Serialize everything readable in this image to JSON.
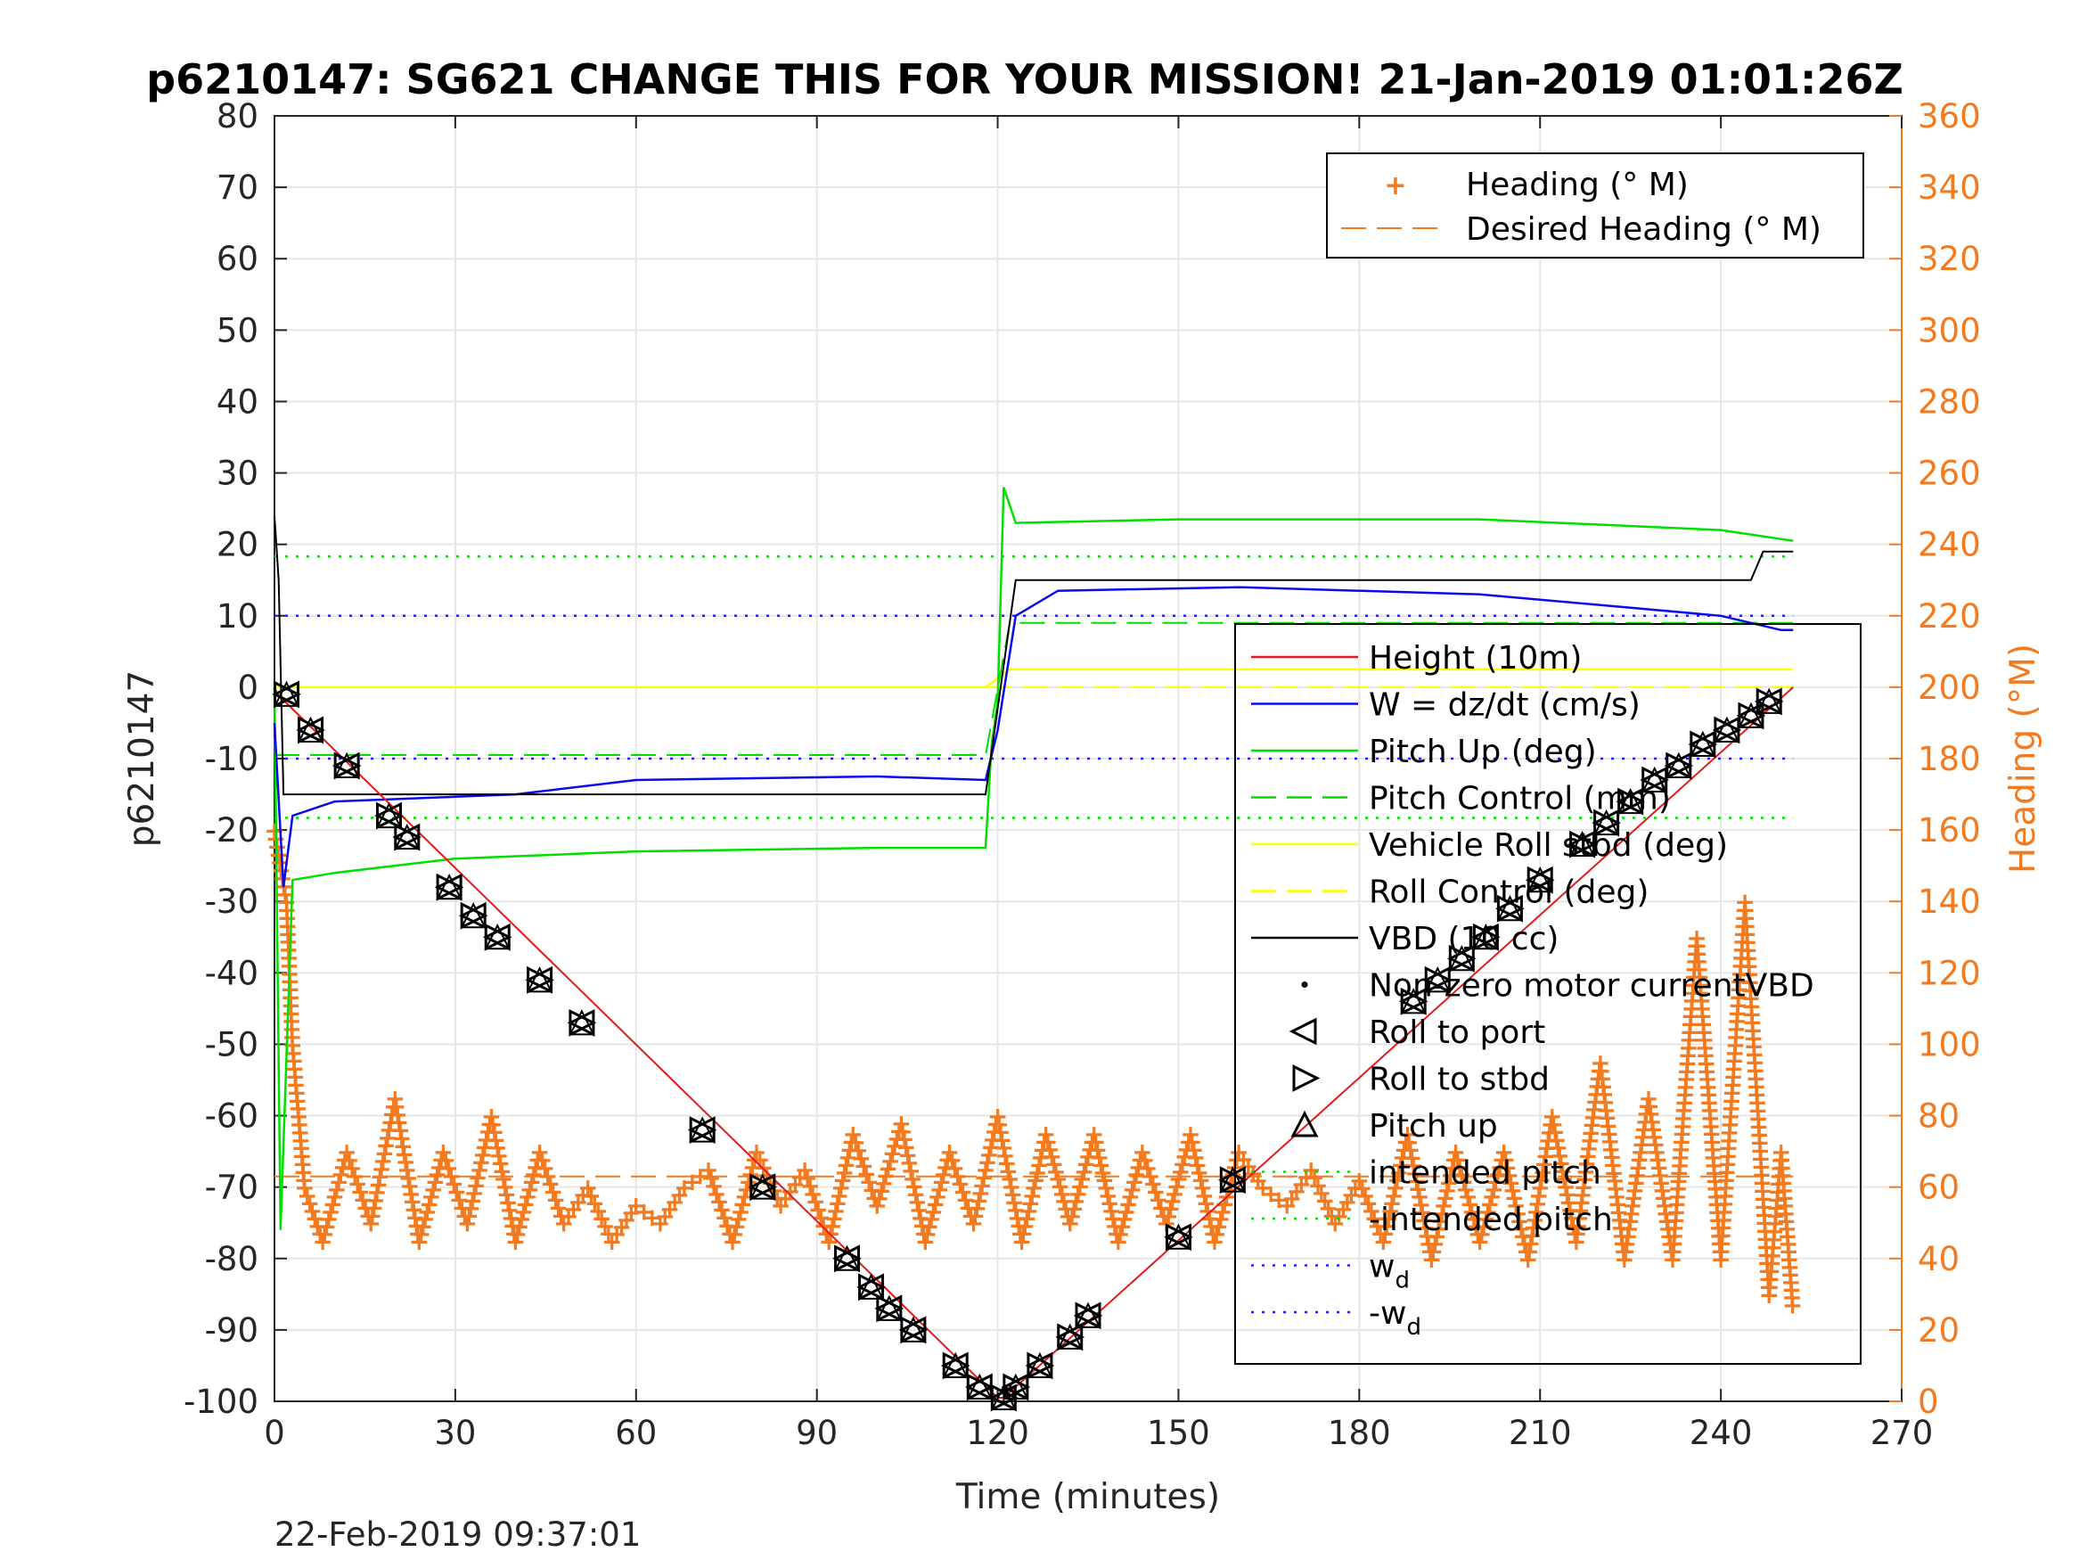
{
  "chart_data": {
    "type": "line",
    "title": "p6210147: SG621 CHANGE THIS FOR YOUR MISSION! 21-Jan-2019 01:01:26Z",
    "xlabel": "Time (minutes)",
    "ylabel": "p6210147",
    "ylabel_right": "Heading (°M)",
    "xlim": [
      0,
      270
    ],
    "ylim": [
      -100,
      80
    ],
    "ylim_right": [
      0,
      360
    ],
    "xticks": [
      "0",
      "30",
      "60",
      "90",
      "120",
      "150",
      "180",
      "210",
      "240",
      "270"
    ],
    "yticks": [
      "80",
      "70",
      "60",
      "50",
      "40",
      "30",
      "20",
      "10",
      "0",
      "-10",
      "-20",
      "-30",
      "-40",
      "-50",
      "-60",
      "-70",
      "-80",
      "-90",
      "-100"
    ],
    "yticks_right": [
      "360",
      "340",
      "320",
      "300",
      "280",
      "260",
      "240",
      "220",
      "200",
      "180",
      "160",
      "140",
      "120",
      "100",
      "80",
      "60",
      "40",
      "20",
      "0"
    ],
    "grid": true,
    "timestamp": "22-Feb-2019 09:37:01",
    "legend_right_axis": [
      "Heading (° M)",
      "Desired Heading (° M)"
    ],
    "legend_left_axis": [
      "Height (10m)",
      "W = dz/dt (cm/s)",
      "Pitch Up (deg)",
      "Pitch Control (mm)",
      "Vehicle Roll stbd (deg)",
      "Roll Control (deg)",
      "VBD (10 cc)",
      "Non-zero motor currentVBD",
      "Roll to port",
      "Roll to stbd",
      "Pitch up",
      "intended pitch",
      "-intended pitch",
      "w_d",
      "-w_d"
    ],
    "colors": {
      "height": "#e31a1c",
      "w": "#0a0af0",
      "pitch": "#00e000",
      "roll": "#ffff00",
      "vbd": "#000000",
      "heading": "#f47a1f",
      "wd": "#2020ff"
    },
    "series": [
      {
        "name": "Height (10m)",
        "x": [
          0,
          0.5,
          120,
          121,
          252
        ],
        "y": [
          0,
          -1,
          -99.5,
          -99.5,
          0
        ]
      },
      {
        "name": "W = dz/dt (cm/s)",
        "x": [
          0,
          1.5,
          3,
          10,
          40,
          60,
          100,
          118,
          120,
          123,
          130,
          160,
          200,
          240,
          250,
          252
        ],
        "y": [
          -5,
          -28,
          -18,
          -16,
          -15,
          -13,
          -12.5,
          -13,
          -6,
          10,
          13.5,
          14,
          13,
          10,
          8,
          8
        ]
      },
      {
        "name": "Pitch Up (deg)",
        "x": [
          0,
          1,
          3,
          10,
          30,
          60,
          100,
          118,
          119,
          120,
          121,
          123,
          150,
          200,
          240,
          252
        ],
        "y": [
          0,
          -76,
          -27,
          -26,
          -24,
          -23,
          -22.5,
          -22.5,
          -8,
          -2,
          28,
          23,
          23.5,
          23.5,
          22,
          20.5
        ]
      },
      {
        "name": "Pitch Control (mm)",
        "x": [
          0,
          118,
          122,
          252
        ],
        "y": [
          -9.5,
          -9.5,
          9,
          9
        ]
      },
      {
        "name": "Vehicle Roll stbd (deg)",
        "x": [
          0,
          118,
          122,
          252
        ],
        "y": [
          0,
          0,
          2.5,
          2.5
        ]
      },
      {
        "name": "Roll Control (deg)",
        "x": [
          0,
          252
        ],
        "y": [
          0,
          0
        ]
      },
      {
        "name": "VBD (10 cc)",
        "x": [
          0,
          0.7,
          1.5,
          118,
          123,
          245,
          246,
          247,
          252
        ],
        "y": [
          24,
          15,
          -15,
          -15,
          15,
          15,
          17,
          19,
          19
        ]
      },
      {
        "name": "intended pitch",
        "x": [
          0,
          252
        ],
        "y": [
          18.3,
          18.3
        ]
      },
      {
        "name": "-intended pitch",
        "x": [
          0,
          252
        ],
        "y": [
          -18.3,
          -18.3
        ]
      },
      {
        "name": "w_d",
        "x": [
          0,
          252
        ],
        "y": [
          10,
          10
        ]
      },
      {
        "name": "-w_d",
        "x": [
          0,
          252
        ],
        "y": [
          -10,
          -10
        ]
      },
      {
        "name": "Heading (° M)",
        "axis": "right",
        "x": [
          0,
          2,
          3,
          5,
          8,
          12,
          16,
          20,
          24,
          28,
          32,
          36,
          40,
          44,
          48,
          52,
          56,
          60,
          64,
          68,
          72,
          76,
          80,
          84,
          88,
          92,
          96,
          100,
          104,
          108,
          112,
          116,
          120,
          124,
          128,
          132,
          136,
          140,
          144,
          148,
          152,
          156,
          160,
          164,
          168,
          172,
          176,
          180,
          184,
          188,
          192,
          196,
          200,
          204,
          208,
          212,
          216,
          220,
          224,
          228,
          232,
          236,
          240,
          244,
          248,
          250,
          252
        ],
        "y": [
          160,
          140,
          100,
          60,
          45,
          70,
          50,
          85,
          45,
          70,
          50,
          80,
          45,
          70,
          50,
          60,
          45,
          55,
          50,
          60,
          65,
          45,
          70,
          55,
          65,
          45,
          75,
          55,
          78,
          45,
          70,
          50,
          80,
          45,
          75,
          50,
          75,
          45,
          70,
          50,
          75,
          45,
          70,
          60,
          55,
          65,
          50,
          62,
          45,
          75,
          40,
          70,
          45,
          70,
          40,
          80,
          45,
          95,
          40,
          85,
          40,
          130,
          40,
          140,
          30,
          70,
          25
        ]
      },
      {
        "name": "Desired Heading (° M)",
        "axis": "right",
        "x": [
          0,
          252
        ],
        "y": [
          63,
          63
        ]
      }
    ],
    "markers": {
      "roll_to_port": {
        "x": [
          2,
          6,
          12,
          19,
          22,
          29,
          33,
          37,
          44,
          51,
          71,
          81,
          95,
          99,
          102,
          106,
          113,
          117,
          121,
          123,
          127,
          132,
          135,
          150,
          159,
          189,
          193,
          197,
          201,
          205,
          210,
          217,
          221,
          225,
          229,
          233,
          237,
          241,
          245,
          248
        ],
        "y": [
          -1,
          -6,
          -11,
          -18,
          -21,
          -28,
          -32,
          -35,
          -41,
          -47,
          -62,
          -70,
          -80,
          -84,
          -87,
          -90,
          -95,
          -98,
          -99.5,
          -98,
          -95,
          -91,
          -88,
          -77,
          -69,
          -44,
          -41,
          -38,
          -35,
          -31,
          -27,
          -22,
          -19,
          -16,
          -13,
          -11,
          -8,
          -6,
          -4,
          -2
        ]
      }
    }
  }
}
